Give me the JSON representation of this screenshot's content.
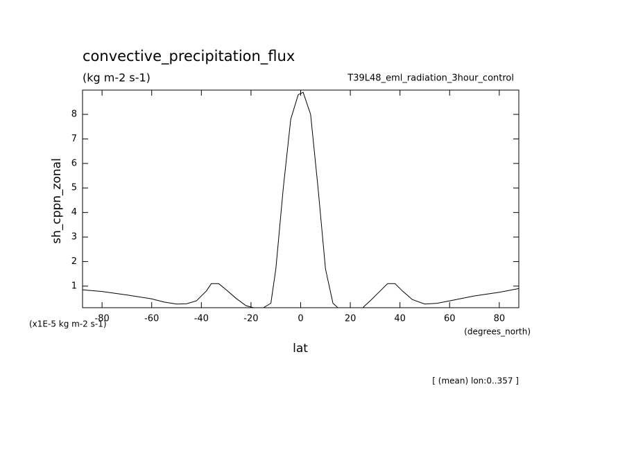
{
  "chart_data": {
    "type": "line",
    "title": "convective_precipitation_flux",
    "subtitle": "(kg m-2 s-1)",
    "dataset": "T39L48_eml_radiation_3hour_control",
    "y_label": "sh_cppn_zonal",
    "y_units": "(x1E-5 kg m-2 s-1)",
    "x_label": "lat",
    "x_units": "(degrees_north)",
    "annotation": "[ (mean) lon:0..357 ]",
    "x": [
      -87.86,
      -80,
      -70,
      -60,
      -55,
      -50,
      -46,
      -42,
      -38,
      -36,
      -33,
      -30,
      -26,
      -22,
      -19,
      -15,
      -12,
      -10,
      -7,
      -4,
      -1,
      1,
      4,
      7,
      10,
      13,
      15,
      20,
      25,
      28,
      32,
      35,
      38,
      41,
      45,
      50,
      55,
      60,
      70,
      80,
      87.86
    ],
    "series": [
      {
        "name": "sh_cppn_zonal",
        "color": "#000000",
        "values": [
          0.85,
          0.78,
          0.64,
          0.48,
          0.35,
          0.27,
          0.28,
          0.4,
          0.8,
          1.1,
          1.1,
          0.85,
          0.5,
          0.2,
          0.12,
          0.12,
          0.3,
          1.7,
          5.0,
          7.8,
          8.8,
          8.9,
          8.0,
          5.0,
          1.7,
          0.3,
          0.12,
          0.12,
          0.12,
          0.4,
          0.8,
          1.1,
          1.1,
          0.8,
          0.45,
          0.27,
          0.3,
          0.4,
          0.6,
          0.75,
          0.9
        ]
      }
    ],
    "xlim": [
      -87.86,
      87.86
    ],
    "ylim": [
      0.12,
      8.99
    ],
    "xticks": [
      -80,
      -60,
      -40,
      -20,
      0,
      20,
      40,
      60,
      80
    ],
    "yticks": [
      1,
      2,
      3,
      4,
      5,
      6,
      7,
      8
    ],
    "grid": false
  }
}
